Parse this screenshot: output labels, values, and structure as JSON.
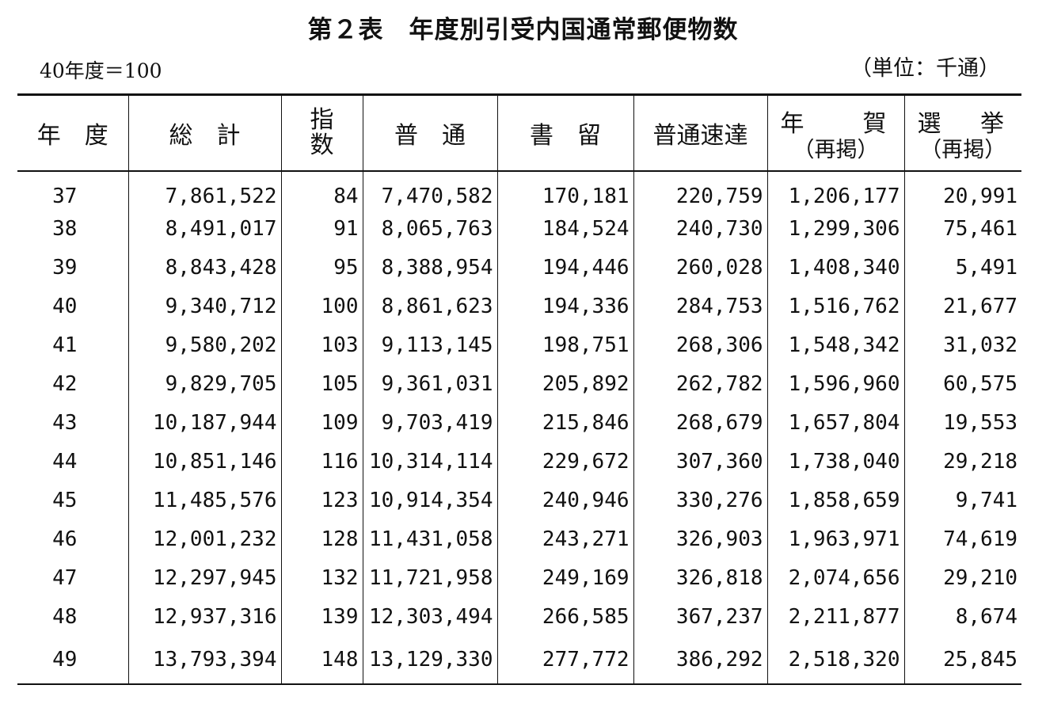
{
  "title": "第２表　年度別引受内国通常郵便物数",
  "base_note": "40年度＝100",
  "unit_note": "（単位：千通）",
  "columns": {
    "year": "年　度",
    "total": "総　計",
    "index_line1": "指",
    "index_line2": "数",
    "ordinary": "普　通",
    "registered": "書　留",
    "express": "普通速達",
    "nenga_a": "年",
    "nenga_b": "賀",
    "nenga_sub": "（再掲）",
    "senkyo_a": "選",
    "senkyo_b": "挙",
    "senkyo_sub": "（再掲）"
  },
  "rows": [
    {
      "year": "37",
      "total": "7,861,522",
      "index": "84",
      "ordinary": "7,470,582",
      "registered": "170,181",
      "express": "220,759",
      "nenga": "1,206,177",
      "senkyo": "20,991"
    },
    {
      "year": "38",
      "total": "8,491,017",
      "index": "91",
      "ordinary": "8,065,763",
      "registered": "184,524",
      "express": "240,730",
      "nenga": "1,299,306",
      "senkyo": "75,461"
    },
    {
      "year": "39",
      "total": "8,843,428",
      "index": "95",
      "ordinary": "8,388,954",
      "registered": "194,446",
      "express": "260,028",
      "nenga": "1,408,340",
      "senkyo": "5,491"
    },
    {
      "year": "40",
      "total": "9,340,712",
      "index": "100",
      "ordinary": "8,861,623",
      "registered": "194,336",
      "express": "284,753",
      "nenga": "1,516,762",
      "senkyo": "21,677"
    },
    {
      "year": "41",
      "total": "9,580,202",
      "index": "103",
      "ordinary": "9,113,145",
      "registered": "198,751",
      "express": "268,306",
      "nenga": "1,548,342",
      "senkyo": "31,032"
    },
    {
      "year": "42",
      "total": "9,829,705",
      "index": "105",
      "ordinary": "9,361,031",
      "registered": "205,892",
      "express": "262,782",
      "nenga": "1,596,960",
      "senkyo": "60,575"
    },
    {
      "year": "43",
      "total": "10,187,944",
      "index": "109",
      "ordinary": "9,703,419",
      "registered": "215,846",
      "express": "268,679",
      "nenga": "1,657,804",
      "senkyo": "19,553"
    },
    {
      "year": "44",
      "total": "10,851,146",
      "index": "116",
      "ordinary": "10,314,114",
      "registered": "229,672",
      "express": "307,360",
      "nenga": "1,738,040",
      "senkyo": "29,218"
    },
    {
      "year": "45",
      "total": "11,485,576",
      "index": "123",
      "ordinary": "10,914,354",
      "registered": "240,946",
      "express": "330,276",
      "nenga": "1,858,659",
      "senkyo": "9,741"
    },
    {
      "year": "46",
      "total": "12,001,232",
      "index": "128",
      "ordinary": "11,431,058",
      "registered": "243,271",
      "express": "326,903",
      "nenga": "1,963,971",
      "senkyo": "74,619"
    },
    {
      "year": "47",
      "total": "12,297,945",
      "index": "132",
      "ordinary": "11,721,958",
      "registered": "249,169",
      "express": "326,818",
      "nenga": "2,074,656",
      "senkyo": "29,210"
    },
    {
      "year": "48",
      "total": "12,937,316",
      "index": "139",
      "ordinary": "12,303,494",
      "registered": "266,585",
      "express": "367,237",
      "nenga": "2,211,877",
      "senkyo": "8,674"
    },
    {
      "year": "49",
      "total": "13,793,394",
      "index": "148",
      "ordinary": "13,129,330",
      "registered": "277,772",
      "express": "386,292",
      "nenga": "2,518,320",
      "senkyo": "25,845"
    }
  ]
}
